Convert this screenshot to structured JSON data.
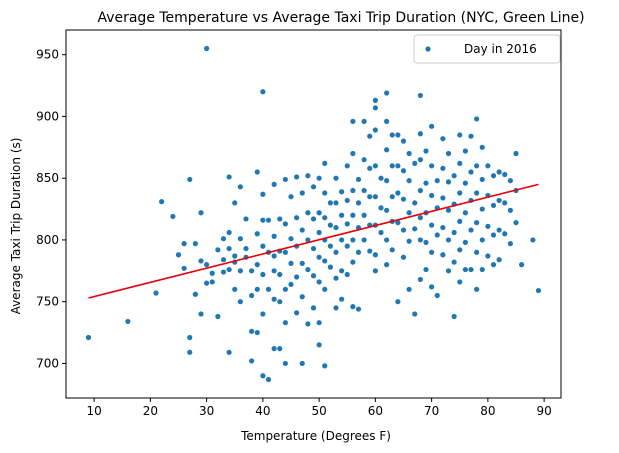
{
  "chart_data": {
    "type": "scatter",
    "title": "Average Temperature vs Average Taxi Trip Duration (NYC, Green Line)",
    "xlabel": "Temperature (Degrees F)",
    "ylabel": "Average Taxi Trip Duration (s)",
    "xlim": [
      5,
      93
    ],
    "ylim": [
      672,
      970
    ],
    "xticks": [
      10,
      20,
      30,
      40,
      50,
      60,
      70,
      80,
      90
    ],
    "yticks": [
      700,
      750,
      800,
      850,
      900,
      950
    ],
    "grid": false,
    "legend": {
      "position": "top-right",
      "entries": [
        "Day in 2016"
      ]
    },
    "colors": {
      "points": "#1f77b4",
      "trend": "#e8000b"
    },
    "trendline": {
      "x": [
        9,
        89
      ],
      "y": [
        753,
        845
      ]
    },
    "series": [
      {
        "name": "Day in 2016",
        "points": [
          [
            9,
            721
          ],
          [
            16,
            734
          ],
          [
            21,
            757
          ],
          [
            22,
            831
          ],
          [
            24,
            819
          ],
          [
            25,
            788
          ],
          [
            26,
            797
          ],
          [
            26,
            777
          ],
          [
            27,
            849
          ],
          [
            27,
            721
          ],
          [
            27,
            709
          ],
          [
            28,
            797
          ],
          [
            28,
            756
          ],
          [
            29,
            740
          ],
          [
            29,
            783
          ],
          [
            29,
            822
          ],
          [
            30,
            955
          ],
          [
            30,
            765
          ],
          [
            30,
            780
          ],
          [
            31,
            773
          ],
          [
            31,
            766
          ],
          [
            32,
            792
          ],
          [
            32,
            738
          ],
          [
            33,
            784
          ],
          [
            33,
            801
          ],
          [
            33,
            774
          ],
          [
            34,
            851
          ],
          [
            34,
            806
          ],
          [
            34,
            793
          ],
          [
            34,
            776
          ],
          [
            34,
            709
          ],
          [
            35,
            830
          ],
          [
            35,
            787
          ],
          [
            35,
            782
          ],
          [
            35,
            760
          ],
          [
            36,
            843
          ],
          [
            36,
            801
          ],
          [
            36,
            775
          ],
          [
            36,
            750
          ],
          [
            37,
            817
          ],
          [
            37,
            793
          ],
          [
            37,
            786
          ],
          [
            38,
            775
          ],
          [
            38,
            755
          ],
          [
            38,
            726
          ],
          [
            38,
            702
          ],
          [
            39,
            855
          ],
          [
            39,
            805
          ],
          [
            39,
            780
          ],
          [
            39,
            760
          ],
          [
            39,
            725
          ],
          [
            40,
            920
          ],
          [
            40,
            837
          ],
          [
            40,
            816
          ],
          [
            40,
            795
          ],
          [
            40,
            772
          ],
          [
            40,
            740
          ],
          [
            40,
            690
          ],
          [
            41,
            816
          ],
          [
            41,
            790
          ],
          [
            41,
            760
          ],
          [
            41,
            687
          ],
          [
            42,
            845
          ],
          [
            42,
            803
          ],
          [
            42,
            787
          ],
          [
            42,
            775
          ],
          [
            42,
            752
          ],
          [
            42,
            712
          ],
          [
            43,
            817
          ],
          [
            43,
            791
          ],
          [
            43,
            772
          ],
          [
            43,
            750
          ],
          [
            43,
            712
          ],
          [
            44,
            849
          ],
          [
            44,
            813
          ],
          [
            44,
            790
          ],
          [
            44,
            760
          ],
          [
            44,
            733
          ],
          [
            44,
            700
          ],
          [
            45,
            835
          ],
          [
            45,
            801
          ],
          [
            45,
            781
          ],
          [
            45,
            764
          ],
          [
            46,
            851
          ],
          [
            46,
            818
          ],
          [
            46,
            795
          ],
          [
            46,
            770
          ],
          [
            46,
            741
          ],
          [
            47,
            838
          ],
          [
            47,
            808
          ],
          [
            47,
            781
          ],
          [
            47,
            754
          ],
          [
            47,
            700
          ],
          [
            48,
            852
          ],
          [
            48,
            822
          ],
          [
            48,
            800
          ],
          [
            48,
            776
          ],
          [
            48,
            732
          ],
          [
            49,
            843
          ],
          [
            49,
            817
          ],
          [
            49,
            793
          ],
          [
            49,
            771
          ],
          [
            49,
            745
          ],
          [
            50,
            850
          ],
          [
            50,
            822
          ],
          [
            50,
            806
          ],
          [
            50,
            786
          ],
          [
            50,
            766
          ],
          [
            50,
            733
          ],
          [
            50,
            715
          ],
          [
            51,
            862
          ],
          [
            51,
            838
          ],
          [
            51,
            818
          ],
          [
            51,
            800
          ],
          [
            51,
            783
          ],
          [
            51,
            760
          ],
          [
            51,
            698
          ],
          [
            52,
            830
          ],
          [
            52,
            812
          ],
          [
            52,
            795
          ],
          [
            52,
            778
          ],
          [
            53,
            850
          ],
          [
            53,
            830
          ],
          [
            53,
            810
          ],
          [
            53,
            790
          ],
          [
            53,
            769
          ],
          [
            53,
            745
          ],
          [
            54,
            839
          ],
          [
            54,
            820
          ],
          [
            54,
            800
          ],
          [
            54,
            775
          ],
          [
            54,
            752
          ],
          [
            55,
            860
          ],
          [
            55,
            832
          ],
          [
            55,
            813
          ],
          [
            55,
            795
          ],
          [
            55,
            772
          ],
          [
            56,
            896
          ],
          [
            56,
            870
          ],
          [
            56,
            840
          ],
          [
            56,
            820
          ],
          [
            56,
            800
          ],
          [
            56,
            782
          ],
          [
            56,
            746
          ],
          [
            57,
            849
          ],
          [
            57,
            830
          ],
          [
            57,
            810
          ],
          [
            57,
            790
          ],
          [
            57,
            744
          ],
          [
            58,
            896
          ],
          [
            58,
            865
          ],
          [
            58,
            840
          ],
          [
            58,
            820
          ],
          [
            58,
            800
          ],
          [
            59,
            884
          ],
          [
            59,
            858
          ],
          [
            59,
            835
          ],
          [
            59,
            812
          ],
          [
            59,
            791
          ],
          [
            60,
            913
          ],
          [
            60,
            907
          ],
          [
            60,
            889
          ],
          [
            60,
            860
          ],
          [
            60,
            835
          ],
          [
            60,
            812
          ],
          [
            60,
            788
          ],
          [
            60,
            775
          ],
          [
            61,
            850
          ],
          [
            61,
            826
          ],
          [
            61,
            806
          ],
          [
            62,
            919
          ],
          [
            62,
            896
          ],
          [
            62,
            873
          ],
          [
            62,
            848
          ],
          [
            62,
            824
          ],
          [
            62,
            800
          ],
          [
            62,
            780
          ],
          [
            63,
            885
          ],
          [
            63,
            860
          ],
          [
            63,
            835
          ],
          [
            63,
            815
          ],
          [
            63,
            792
          ],
          [
            64,
            885
          ],
          [
            64,
            860
          ],
          [
            64,
            838
          ],
          [
            64,
            814
          ],
          [
            64,
            750
          ],
          [
            65,
            880
          ],
          [
            65,
            856
          ],
          [
            65,
            833
          ],
          [
            65,
            808
          ],
          [
            65,
            786
          ],
          [
            66,
            870
          ],
          [
            66,
            848
          ],
          [
            66,
            822
          ],
          [
            66,
            799
          ],
          [
            66,
            760
          ],
          [
            67,
            862
          ],
          [
            67,
            830
          ],
          [
            67,
            809
          ],
          [
            67,
            740
          ],
          [
            68,
            917
          ],
          [
            68,
            886
          ],
          [
            68,
            865
          ],
          [
            68,
            840
          ],
          [
            68,
            818
          ],
          [
            68,
            800
          ],
          [
            68,
            768
          ],
          [
            69,
            872
          ],
          [
            69,
            846
          ],
          [
            69,
            822
          ],
          [
            69,
            798
          ],
          [
            69,
            776
          ],
          [
            70,
            892
          ],
          [
            70,
            860
          ],
          [
            70,
            836
          ],
          [
            70,
            812
          ],
          [
            70,
            790
          ],
          [
            70,
            762
          ],
          [
            71,
            848
          ],
          [
            71,
            826
          ],
          [
            71,
            804
          ],
          [
            71,
            755
          ],
          [
            72,
            882
          ],
          [
            72,
            858
          ],
          [
            72,
            834
          ],
          [
            72,
            810
          ],
          [
            72,
            788
          ],
          [
            73,
            870
          ],
          [
            73,
            847
          ],
          [
            73,
            824
          ],
          [
            73,
            800
          ],
          [
            73,
            775
          ],
          [
            74,
            852
          ],
          [
            74,
            829
          ],
          [
            74,
            806
          ],
          [
            74,
            782
          ],
          [
            74,
            738
          ],
          [
            75,
            885
          ],
          [
            75,
            862
          ],
          [
            75,
            838
          ],
          [
            75,
            815
          ],
          [
            75,
            792
          ],
          [
            75,
            766
          ],
          [
            76,
            872
          ],
          [
            76,
            846
          ],
          [
            76,
            822
          ],
          [
            76,
            798
          ],
          [
            76,
            776
          ],
          [
            77,
            884
          ],
          [
            77,
            855
          ],
          [
            77,
            832
          ],
          [
            77,
            808
          ],
          [
            77,
            776
          ],
          [
            78,
            898
          ],
          [
            78,
            860
          ],
          [
            78,
            838
          ],
          [
            78,
            814
          ],
          [
            78,
            790
          ],
          [
            78,
            760
          ],
          [
            79,
            875
          ],
          [
            79,
            849
          ],
          [
            79,
            825
          ],
          [
            79,
            800
          ],
          [
            79,
            776
          ],
          [
            80,
            860
          ],
          [
            80,
            836
          ],
          [
            80,
            811
          ],
          [
            80,
            787
          ],
          [
            81,
            852
          ],
          [
            81,
            828
          ],
          [
            81,
            804
          ],
          [
            81,
            780
          ],
          [
            82,
            855
          ],
          [
            82,
            832
          ],
          [
            82,
            808
          ],
          [
            82,
            784
          ],
          [
            83,
            853
          ],
          [
            83,
            830
          ],
          [
            83,
            805
          ],
          [
            84,
            848
          ],
          [
            84,
            824
          ],
          [
            84,
            797
          ],
          [
            85,
            870
          ],
          [
            85,
            840
          ],
          [
            85,
            814
          ],
          [
            86,
            780
          ],
          [
            88,
            800
          ],
          [
            89,
            759
          ]
        ]
      }
    ]
  }
}
